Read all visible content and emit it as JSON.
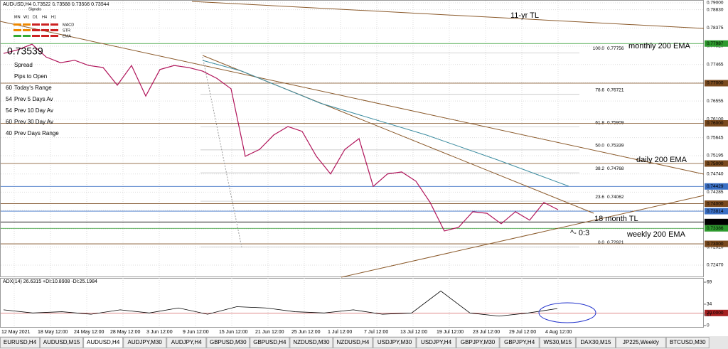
{
  "header": "AUDUSD,H4  0.73522 0.73588 0.73506 0.73544",
  "mtf": {
    "timeframes": [
      "MN",
      "W1",
      "D1",
      "H4",
      "H1"
    ],
    "rows": [
      "MACD",
      "STR",
      "EMA"
    ],
    "title": "Signals"
  },
  "current_price": {
    "value": 0.73539,
    "label": "0.73539"
  },
  "info": [
    {
      "label": "Spread"
    },
    {
      "label": "Pips to Open"
    },
    {
      "value": 60,
      "label": "Today's Range"
    },
    {
      "value": 54,
      "label": "Prev 5 Days Av"
    },
    {
      "value": 54,
      "label": "Prev 10 Day Av"
    },
    {
      "value": 60,
      "label": "Prev 30 Day Av"
    },
    {
      "value": 40,
      "label": "Prev Days Range"
    }
  ],
  "price_axis": {
    "ylim": [
      0.7247,
      0.79
    ],
    "ticks": [
      {
        "value": 0.79,
        "label": "0.79000"
      },
      {
        "value": 0.7883,
        "label": "0.78830"
      },
      {
        "value": 0.78375,
        "label": "0.78375"
      },
      {
        "value": 0.7792,
        "label": "0.77920"
      },
      {
        "value": 0.77465,
        "label": "0.77465"
      },
      {
        "value": 0.7701,
        "label": "0.77010"
      },
      {
        "value": 0.76555,
        "label": "0.76555"
      },
      {
        "value": 0.761,
        "label": "0.76100"
      },
      {
        "value": 0.75645,
        "label": "0.75645"
      },
      {
        "value": 0.75195,
        "label": "0.75195"
      },
      {
        "value": 0.7474,
        "label": "0.74740"
      },
      {
        "value": 0.74285,
        "label": "0.74285"
      },
      {
        "value": 0.7383,
        "label": "0.73830"
      },
      {
        "value": 0.73375,
        "label": "0.73375"
      },
      {
        "value": 0.7292,
        "label": "0.72920"
      },
      {
        "value": 0.7247,
        "label": "0.72470"
      }
    ]
  },
  "levels": [
    {
      "value": 0.77987,
      "label": "0.77987",
      "color": "#2e9a2e"
    },
    {
      "value": 0.77,
      "label": "0.77000",
      "color": "#7a4a1e"
    },
    {
      "value": 0.76,
      "label": "0.76000",
      "color": "#7a4a1e"
    },
    {
      "value": 0.75,
      "label": "0.75000",
      "color": "#7a4a1e"
    },
    {
      "value": 0.74429,
      "label": "0.74429",
      "color": "#3a6fc4"
    },
    {
      "value": 0.74,
      "label": "0.74000",
      "color": "#7a4a1e"
    },
    {
      "value": 0.73814,
      "label": "0.73814",
      "color": "#3a6fc4"
    },
    {
      "value": 0.73544,
      "label": "0.73544",
      "color": "#000000"
    },
    {
      "value": 0.73386,
      "label": "0.73386",
      "color": "#2e9a2e"
    },
    {
      "value": 0.73,
      "label": "0.73000",
      "color": "#7a4a1e"
    }
  ],
  "fibs": [
    {
      "level": "100.0",
      "price": 0.77756
    },
    {
      "level": "78.6",
      "price": 0.76721
    },
    {
      "level": "61.8",
      "price": 0.75909
    },
    {
      "level": "50.0",
      "price": 0.75339
    },
    {
      "level": "38.2",
      "price": 0.74768
    },
    {
      "level": "23.6",
      "price": 0.74062
    },
    {
      "level": "0.0",
      "price": 0.72921
    }
  ],
  "price_path": [
    0.7774,
    0.7783,
    0.7797,
    0.7765,
    0.7751,
    0.7757,
    0.7744,
    0.7739,
    0.7695,
    0.7744,
    0.7668,
    0.7734,
    0.7744,
    0.7739,
    0.773,
    0.7712,
    0.7686,
    0.7518,
    0.7535,
    0.7571,
    0.7592,
    0.758,
    0.7518,
    0.7474,
    0.7535,
    0.7562,
    0.7443,
    0.7474,
    0.7479,
    0.7456,
    0.7403,
    0.7332,
    0.7341,
    0.738,
    0.7376,
    0.735,
    0.738,
    0.7359,
    0.7403,
    0.7385
  ],
  "annotations": {
    "tl11": "11-yr TL",
    "monthly": "monthly 200 EMA",
    "daily": "daily 200 EMA",
    "tl18": "18 month TL",
    "weekly": "weekly 200 EMA",
    "countdown": "^- 0:3"
  },
  "adx": {
    "title": "ADX(14) 26.6315 +DI:10.8908 -DI:25.1984",
    "ylim": [
      0,
      69
    ],
    "ticks": [
      69,
      34,
      {
        "value": 20,
        "label": "20.0000"
      },
      17,
      0
    ],
    "values": [
      25,
      20,
      22,
      18,
      25,
      20,
      28,
      18,
      30,
      28,
      22,
      20,
      25,
      18,
      20,
      55,
      20,
      15,
      20,
      27
    ]
  },
  "dates": [
    "12 May 2021",
    "18 May 12:00",
    "24 May 12:00",
    "28 May 12:00",
    "3 Jun 12:00",
    "9 Jun 12:00",
    "15 Jun 12:00",
    "21 Jun 12:00",
    "25 Jun 12:00",
    "1 Jul 12:00",
    "7 Jul 12:00",
    "13 Jul 12:00",
    "19 Jul 12:00",
    "23 Jul 12:00",
    "29 Jul 12:00",
    "4 Aug 12:00"
  ],
  "tabs": [
    "EURUSD,H4",
    "AUDUSD,M15",
    "AUDUSD,H4",
    "AUDJPY,M30",
    "AUDJPY,H4",
    "GBPUSD,M30",
    "GBPUSD,H4",
    "NZDUSD,M30",
    "NZDUSD,H4",
    "USDJPY,M30",
    "USDJPY,H4",
    "GBPJPY,M30",
    "GBPJPY,H4",
    "WS30,M15",
    "DAX30,M15",
    "JP225,Weekly",
    "BTCUSD,M30"
  ],
  "active_tab": 2
}
